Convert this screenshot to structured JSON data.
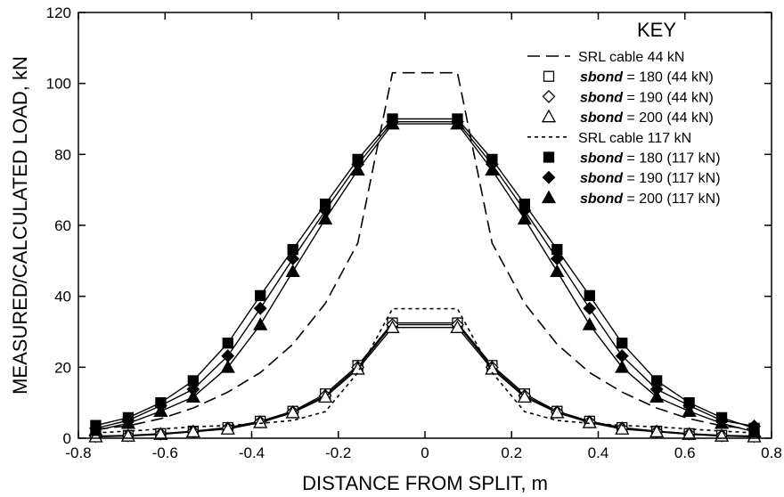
{
  "chart_data": {
    "type": "line",
    "title": "",
    "xlabel": "DISTANCE FROM SPLIT, m",
    "ylabel": "MEASURED/CALCULATED LOAD, kN",
    "xlim": [
      -0.8,
      0.8
    ],
    "ylim": [
      0,
      120
    ],
    "xticks": [
      -0.8,
      -0.6,
      -0.4,
      -0.2,
      0,
      0.2,
      0.4,
      0.6,
      0.8
    ],
    "xtick_labels": [
      "-0.8",
      "-0.6",
      "-0.4",
      "-0.2",
      "0",
      "0.2",
      "0.4",
      "0.6",
      "0.8"
    ],
    "yticks": [
      0,
      20,
      40,
      60,
      80,
      100,
      120
    ],
    "ytick_labels": [
      "0",
      "20",
      "40",
      "60",
      "80",
      "100",
      "120"
    ],
    "grid": false,
    "legend": {
      "title": "KEY",
      "placement": "top-right",
      "entries": [
        {
          "series": 0,
          "prefix": "SRL cable 44 kN",
          "suffix": ""
        },
        {
          "series": 1,
          "prefix": "sbond",
          "suffix": " = 180 (44 kN)"
        },
        {
          "series": 2,
          "prefix": "sbond",
          "suffix": " = 190 (44 kN)"
        },
        {
          "series": 3,
          "prefix": "sbond",
          "suffix": " = 200 (44 kN)"
        },
        {
          "series": 4,
          "prefix": "SRL cable 117 kN",
          "suffix": ""
        },
        {
          "series": 5,
          "prefix": "sbond",
          "suffix": " = 180 (117 kN)"
        },
        {
          "series": 6,
          "prefix": "sbond",
          "suffix": " = 190 (117 kN)"
        },
        {
          "series": 7,
          "prefix": "sbond",
          "suffix": " = 200 (117 kN)"
        }
      ]
    },
    "x": [
      -0.76,
      -0.685,
      -0.61,
      -0.535,
      -0.455,
      -0.38,
      -0.305,
      -0.23,
      -0.155,
      -0.075,
      0.075,
      0.155,
      0.23,
      0.305,
      0.38,
      0.455,
      0.535,
      0.61,
      0.685,
      0.76
    ],
    "series": [
      {
        "name": "SRL cable 44 kN",
        "style": "dashed-long",
        "marker": "none",
        "x": [
          -0.76,
          -0.685,
          -0.61,
          -0.535,
          -0.455,
          -0.38,
          -0.305,
          -0.23,
          -0.155,
          -0.075,
          0.075,
          0.155,
          0.23,
          0.305,
          0.38,
          0.455,
          0.535,
          0.61,
          0.685,
          0.76
        ],
        "values": [
          2.5,
          3.5,
          5.5,
          8.5,
          13,
          18.5,
          26.5,
          38,
          55,
          103,
          103,
          55,
          38,
          26.5,
          18.5,
          13,
          8.5,
          5.5,
          3.5,
          2.5
        ]
      },
      {
        "name": "sbond = 180 (44 kN)",
        "style": "solid",
        "marker": "square-open",
        "x": [
          -0.76,
          -0.685,
          -0.61,
          -0.535,
          -0.455,
          -0.38,
          -0.305,
          -0.23,
          -0.155,
          -0.075,
          0.075,
          0.155,
          0.23,
          0.305,
          0.38,
          0.455,
          0.535,
          0.61,
          0.685,
          0.76
        ],
        "values": [
          0.6,
          0.8,
          1.3,
          2.0,
          3.0,
          4.8,
          7.6,
          12.5,
          20.5,
          32.5,
          32.5,
          20.5,
          12.5,
          7.6,
          4.8,
          3.0,
          2.0,
          1.3,
          0.8,
          0.6
        ]
      },
      {
        "name": "sbond = 190 (44 kN)",
        "style": "solid",
        "marker": "diamond-open",
        "x": [
          -0.76,
          -0.685,
          -0.61,
          -0.535,
          -0.455,
          -0.38,
          -0.305,
          -0.23,
          -0.155,
          -0.075,
          0.075,
          0.155,
          0.23,
          0.305,
          0.38,
          0.455,
          0.535,
          0.61,
          0.685,
          0.76
        ],
        "values": [
          0.5,
          0.7,
          1.2,
          1.9,
          2.8,
          4.6,
          7.4,
          12.0,
          20.0,
          32.0,
          32.0,
          20.0,
          12.0,
          7.4,
          4.6,
          2.8,
          1.9,
          1.2,
          0.7,
          0.5
        ]
      },
      {
        "name": "sbond = 200 (44 kN)",
        "style": "solid",
        "marker": "triangle-open",
        "x": [
          -0.76,
          -0.685,
          -0.61,
          -0.535,
          -0.455,
          -0.38,
          -0.305,
          -0.23,
          -0.155,
          -0.075,
          0.075,
          0.155,
          0.23,
          0.305,
          0.38,
          0.455,
          0.535,
          0.61,
          0.685,
          0.76
        ],
        "values": [
          0.4,
          0.6,
          1.1,
          1.8,
          2.6,
          4.4,
          7.2,
          11.6,
          19.5,
          31.2,
          31.2,
          19.5,
          11.6,
          7.2,
          4.4,
          2.6,
          1.8,
          1.1,
          0.6,
          0.4
        ]
      },
      {
        "name": "SRL cable 117 kN",
        "style": "dashed-short",
        "marker": "none",
        "x": [
          -0.76,
          -0.685,
          -0.61,
          -0.535,
          -0.455,
          -0.38,
          -0.305,
          -0.23,
          -0.155,
          -0.075,
          0.075,
          0.155,
          0.23,
          0.305,
          0.38,
          0.455,
          0.535,
          0.61,
          0.685,
          0.76
        ],
        "values": [
          1.5,
          2.0,
          2.6,
          3.2,
          3.6,
          4.2,
          5.0,
          7.5,
          18.5,
          36.5,
          36.5,
          18.5,
          7.5,
          5.0,
          4.2,
          3.6,
          3.2,
          2.6,
          2.0,
          1.5
        ]
      },
      {
        "name": "sbond = 180 (117 kN)",
        "style": "solid",
        "marker": "square-filled",
        "x": [
          -0.76,
          -0.685,
          -0.61,
          -0.535,
          -0.455,
          -0.38,
          -0.305,
          -0.23,
          -0.155,
          -0.075,
          0.075,
          0.155,
          0.23,
          0.305,
          0.38,
          0.455,
          0.535,
          0.61,
          0.685,
          0.76
        ],
        "values": [
          3.6,
          5.8,
          10.0,
          16.2,
          26.8,
          40.2,
          53.2,
          66.0,
          78.6,
          90.0,
          90.0,
          78.6,
          66.0,
          53.2,
          40.2,
          26.8,
          16.2,
          10.0,
          5.8,
          2.8
        ]
      },
      {
        "name": "sbond = 190 (117 kN)",
        "style": "solid",
        "marker": "diamond-filled",
        "x": [
          -0.76,
          -0.685,
          -0.61,
          -0.535,
          -0.455,
          -0.38,
          -0.305,
          -0.23,
          -0.155,
          -0.075,
          0.075,
          0.155,
          0.23,
          0.305,
          0.38,
          0.455,
          0.535,
          0.61,
          0.685,
          0.76
        ],
        "values": [
          2.8,
          5.0,
          9.2,
          13.8,
          23.2,
          36.6,
          50.6,
          64.2,
          77.2,
          89.2,
          89.2,
          77.2,
          64.2,
          50.6,
          36.6,
          23.2,
          13.8,
          9.2,
          5.0,
          3.4
        ]
      },
      {
        "name": "sbond = 200 (117 kN)",
        "style": "solid",
        "marker": "triangle-filled",
        "x": [
          -0.76,
          -0.685,
          -0.61,
          -0.535,
          -0.455,
          -0.38,
          -0.305,
          -0.23,
          -0.155,
          -0.075,
          0.075,
          0.155,
          0.23,
          0.305,
          0.38,
          0.455,
          0.535,
          0.61,
          0.685,
          0.76
        ],
        "values": [
          2.2,
          4.2,
          7.6,
          11.6,
          20.0,
          32.0,
          47.0,
          61.8,
          75.6,
          88.6,
          88.6,
          75.6,
          61.8,
          47.0,
          32.0,
          20.0,
          11.6,
          7.6,
          4.2,
          1.8
        ]
      }
    ]
  }
}
